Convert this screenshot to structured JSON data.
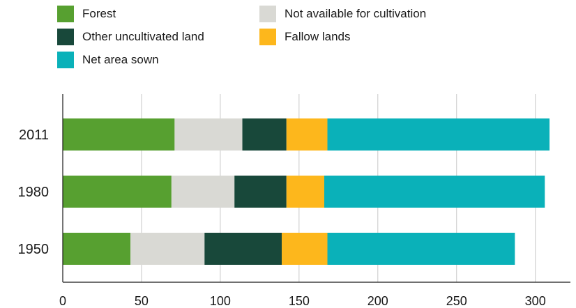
{
  "chart_data": {
    "type": "bar",
    "orientation": "horizontal",
    "stacked": true,
    "categories": [
      "2011",
      "1980",
      "1950"
    ],
    "series": [
      {
        "name": "Forest",
        "color": "#57a030",
        "values": [
          71,
          69,
          43
        ]
      },
      {
        "name": "Not available for cultivation",
        "color": "#d9d9d4",
        "values": [
          43,
          40,
          47
        ]
      },
      {
        "name": "Other uncultivated land",
        "color": "#18483a",
        "values": [
          28,
          33,
          49
        ]
      },
      {
        "name": "Fallow lands",
        "color": "#fdb71c",
        "values": [
          26,
          24,
          29
        ]
      },
      {
        "name": "Net area sown",
        "color": "#0ab1b9",
        "values": [
          141,
          140,
          119
        ]
      }
    ],
    "xticks": [
      0,
      50,
      100,
      150,
      200,
      250,
      300
    ],
    "xlim": [
      0,
      310
    ],
    "grid": true,
    "legend_position": "top-left",
    "title": "",
    "xlabel": "",
    "ylabel": ""
  }
}
